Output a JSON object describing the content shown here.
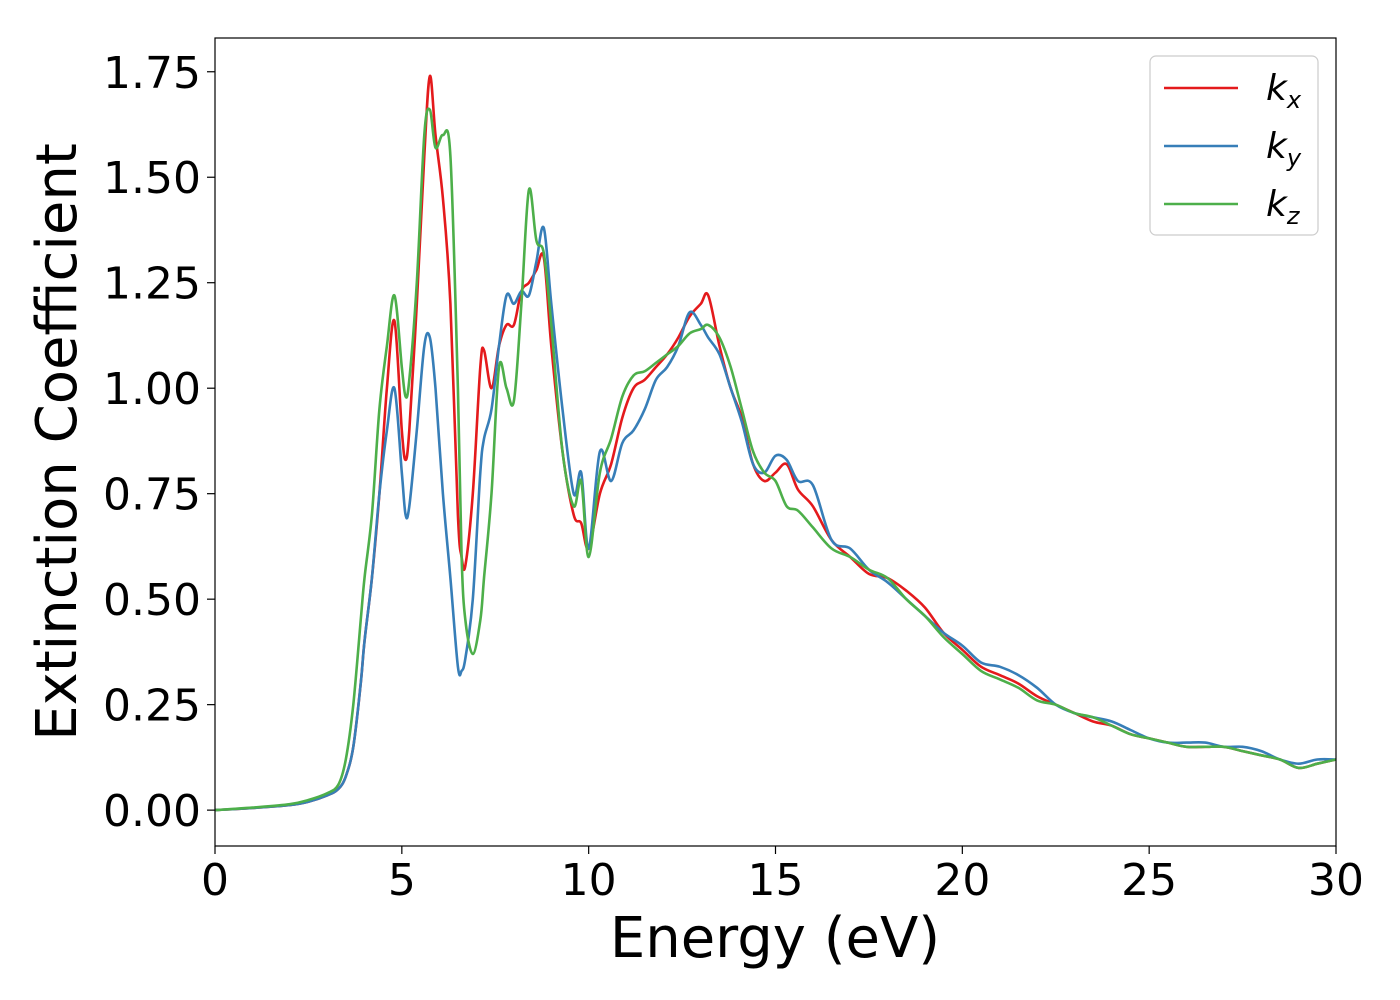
{
  "chart_data": {
    "type": "line",
    "xlabel": "Energy (eV)",
    "ylabel": "Extinction Coefficient",
    "xlim": [
      0,
      30
    ],
    "ylim": [
      -0.085,
      1.83
    ],
    "xticks": [
      "0",
      "5",
      "10",
      "15",
      "20",
      "25",
      "30"
    ],
    "xtick_values": [
      0,
      5,
      10,
      15,
      20,
      25,
      30
    ],
    "yticks": [
      "0.00",
      "0.25",
      "0.50",
      "0.75",
      "1.00",
      "1.25",
      "1.50",
      "1.75"
    ],
    "ytick_values": [
      0,
      0.25,
      0.5,
      0.75,
      1.0,
      1.25,
      1.5,
      1.75
    ],
    "grid": false,
    "legend_position": "top-right",
    "series": [
      {
        "name": "k",
        "subscript": "x",
        "color": "#e41a1c",
        "x": [
          0,
          1,
          2,
          2.5,
          3,
          3.3,
          3.5,
          3.7,
          3.9,
          4.0,
          4.2,
          4.4,
          4.6,
          4.8,
          5.0,
          5.1,
          5.2,
          5.4,
          5.6,
          5.75,
          5.9,
          6.1,
          6.3,
          6.5,
          6.6,
          6.7,
          6.9,
          7.1,
          7.2,
          7.4,
          7.6,
          7.8,
          8.0,
          8.2,
          8.4,
          8.6,
          8.8,
          9.0,
          9.3,
          9.6,
          9.8,
          10.0,
          10.3,
          10.6,
          10.9,
          11.2,
          11.5,
          11.8,
          12.1,
          12.4,
          12.7,
          13.0,
          13.2,
          13.5,
          13.8,
          14.1,
          14.4,
          14.7,
          15.0,
          15.3,
          15.6,
          16.0,
          16.5,
          17.0,
          17.5,
          18.0,
          18.5,
          19.0,
          19.5,
          20.0,
          20.5,
          21.0,
          21.5,
          22.0,
          22.5,
          23.0,
          23.5,
          24.0,
          24.5,
          25.0,
          25.5,
          26.0,
          26.5,
          27.0,
          27.5,
          28.0,
          28.5,
          29.0,
          29.5,
          30.0
        ],
        "y": [
          0.0,
          0.005,
          0.012,
          0.02,
          0.035,
          0.05,
          0.08,
          0.15,
          0.3,
          0.4,
          0.55,
          0.75,
          1.0,
          1.16,
          0.9,
          0.83,
          0.9,
          1.2,
          1.55,
          1.74,
          1.6,
          1.45,
          1.2,
          0.7,
          0.6,
          0.58,
          0.75,
          1.05,
          1.09,
          1.0,
          1.1,
          1.15,
          1.15,
          1.23,
          1.25,
          1.28,
          1.31,
          1.1,
          0.85,
          0.7,
          0.68,
          0.62,
          0.75,
          0.82,
          0.93,
          1.0,
          1.02,
          1.05,
          1.08,
          1.12,
          1.17,
          1.2,
          1.22,
          1.1,
          1.0,
          0.93,
          0.82,
          0.78,
          0.8,
          0.82,
          0.76,
          0.72,
          0.64,
          0.6,
          0.56,
          0.55,
          0.52,
          0.48,
          0.42,
          0.38,
          0.34,
          0.32,
          0.3,
          0.27,
          0.25,
          0.23,
          0.21,
          0.2,
          0.18,
          0.17,
          0.16,
          0.15,
          0.15,
          0.15,
          0.14,
          0.13,
          0.12,
          0.1,
          0.11,
          0.12
        ]
      },
      {
        "name": "k",
        "subscript": "y",
        "color": "#377eb8",
        "x": [
          0,
          1,
          2,
          2.5,
          3,
          3.3,
          3.5,
          3.7,
          3.9,
          4.0,
          4.2,
          4.4,
          4.6,
          4.8,
          5.0,
          5.1,
          5.2,
          5.4,
          5.6,
          5.75,
          5.9,
          6.1,
          6.3,
          6.5,
          6.6,
          6.7,
          6.9,
          7.1,
          7.2,
          7.4,
          7.6,
          7.8,
          8.0,
          8.2,
          8.4,
          8.6,
          8.8,
          9.0,
          9.3,
          9.6,
          9.8,
          10.0,
          10.3,
          10.6,
          10.9,
          11.2,
          11.5,
          11.8,
          12.1,
          12.4,
          12.7,
          13.0,
          13.2,
          13.5,
          13.8,
          14.1,
          14.4,
          14.7,
          15.0,
          15.3,
          15.6,
          16.0,
          16.5,
          17.0,
          17.5,
          18.0,
          18.5,
          19.0,
          19.5,
          20.0,
          20.5,
          21.0,
          21.5,
          22.0,
          22.5,
          23.0,
          23.5,
          24.0,
          24.5,
          25.0,
          25.5,
          26.0,
          26.5,
          27.0,
          27.5,
          28.0,
          28.5,
          29.0,
          29.5,
          30.0
        ],
        "y": [
          0.0,
          0.005,
          0.012,
          0.02,
          0.035,
          0.05,
          0.08,
          0.15,
          0.3,
          0.4,
          0.55,
          0.75,
          0.9,
          1.0,
          0.8,
          0.7,
          0.72,
          0.9,
          1.1,
          1.12,
          1.0,
          0.75,
          0.55,
          0.34,
          0.33,
          0.36,
          0.5,
          0.8,
          0.88,
          0.95,
          1.1,
          1.22,
          1.2,
          1.23,
          1.22,
          1.3,
          1.38,
          1.2,
          0.95,
          0.75,
          0.8,
          0.62,
          0.85,
          0.78,
          0.87,
          0.9,
          0.95,
          1.02,
          1.05,
          1.1,
          1.18,
          1.15,
          1.12,
          1.08,
          1.0,
          0.92,
          0.82,
          0.8,
          0.84,
          0.83,
          0.78,
          0.77,
          0.64,
          0.62,
          0.57,
          0.54,
          0.5,
          0.46,
          0.42,
          0.39,
          0.35,
          0.34,
          0.32,
          0.29,
          0.25,
          0.23,
          0.22,
          0.21,
          0.19,
          0.17,
          0.16,
          0.16,
          0.16,
          0.15,
          0.15,
          0.14,
          0.12,
          0.11,
          0.12,
          0.12
        ]
      },
      {
        "name": "k",
        "subscript": "z",
        "color": "#4daf4a",
        "x": [
          0,
          1,
          2,
          2.5,
          3,
          3.3,
          3.5,
          3.7,
          3.9,
          4.0,
          4.2,
          4.4,
          4.6,
          4.8,
          5.0,
          5.1,
          5.2,
          5.4,
          5.6,
          5.75,
          5.9,
          6.1,
          6.3,
          6.5,
          6.6,
          6.7,
          6.9,
          7.1,
          7.2,
          7.4,
          7.6,
          7.8,
          8.0,
          8.2,
          8.4,
          8.6,
          8.8,
          9.0,
          9.3,
          9.6,
          9.8,
          10.0,
          10.3,
          10.6,
          10.9,
          11.2,
          11.5,
          11.8,
          12.1,
          12.4,
          12.7,
          13.0,
          13.2,
          13.5,
          13.8,
          14.1,
          14.4,
          14.7,
          15.0,
          15.3,
          15.6,
          16.0,
          16.5,
          17.0,
          17.5,
          18.0,
          18.5,
          19.0,
          19.5,
          20.0,
          20.5,
          21.0,
          21.5,
          22.0,
          22.5,
          23.0,
          23.5,
          24.0,
          24.5,
          25.0,
          25.5,
          26.0,
          26.5,
          27.0,
          27.5,
          28.0,
          28.5,
          29.0,
          29.5,
          30.0
        ],
        "y": [
          0.0,
          0.006,
          0.014,
          0.024,
          0.04,
          0.06,
          0.12,
          0.25,
          0.45,
          0.55,
          0.7,
          0.95,
          1.1,
          1.22,
          1.05,
          0.98,
          1.02,
          1.25,
          1.6,
          1.66,
          1.57,
          1.6,
          1.55,
          1.0,
          0.6,
          0.45,
          0.37,
          0.45,
          0.55,
          0.75,
          1.05,
          1.0,
          0.97,
          1.2,
          1.47,
          1.35,
          1.32,
          1.15,
          0.85,
          0.72,
          0.78,
          0.6,
          0.8,
          0.88,
          0.98,
          1.03,
          1.04,
          1.06,
          1.08,
          1.1,
          1.13,
          1.14,
          1.15,
          1.12,
          1.05,
          0.95,
          0.85,
          0.8,
          0.78,
          0.72,
          0.71,
          0.67,
          0.62,
          0.6,
          0.57,
          0.55,
          0.5,
          0.46,
          0.41,
          0.37,
          0.33,
          0.31,
          0.29,
          0.26,
          0.25,
          0.23,
          0.22,
          0.2,
          0.18,
          0.17,
          0.16,
          0.15,
          0.15,
          0.15,
          0.14,
          0.13,
          0.12,
          0.1,
          0.11,
          0.12
        ]
      }
    ]
  }
}
